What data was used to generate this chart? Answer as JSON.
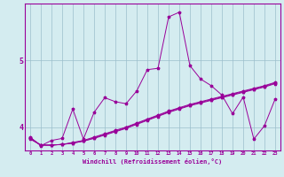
{
  "xlabel": "Windchill (Refroidissement éolien,°C)",
  "bg_color": "#d4ecf0",
  "line_color": "#990099",
  "grid_color": "#9bbfcc",
  "x_ticks": [
    0,
    1,
    2,
    3,
    4,
    5,
    6,
    7,
    8,
    9,
    10,
    11,
    12,
    13,
    14,
    15,
    16,
    17,
    18,
    19,
    20,
    21,
    22,
    23
  ],
  "y_ticks": [
    4,
    5
  ],
  "ylim": [
    3.65,
    5.85
  ],
  "xlim": [
    -0.5,
    23.5
  ],
  "series1_x": [
    0,
    1,
    2,
    3,
    4,
    5,
    6,
    7,
    8,
    9,
    10,
    11,
    12,
    13,
    14,
    15,
    16,
    17,
    18,
    19,
    20,
    21,
    22,
    23
  ],
  "series1_y": [
    3.85,
    3.72,
    3.8,
    3.83,
    4.27,
    3.82,
    4.22,
    4.44,
    4.38,
    4.35,
    4.54,
    4.86,
    4.88,
    5.65,
    5.72,
    4.92,
    4.72,
    4.62,
    4.48,
    4.2,
    4.45,
    3.82,
    4.02,
    4.42
  ],
  "series2_x": [
    0,
    1,
    2,
    3,
    4,
    5,
    6,
    7,
    8,
    9,
    10,
    11,
    12,
    13,
    14,
    15,
    16,
    17,
    18,
    19,
    20,
    21,
    22,
    23
  ],
  "series2_y": [
    3.82,
    3.73,
    3.73,
    3.74,
    3.76,
    3.79,
    3.83,
    3.88,
    3.93,
    3.98,
    4.04,
    4.1,
    4.16,
    4.22,
    4.27,
    4.32,
    4.36,
    4.4,
    4.44,
    4.48,
    4.52,
    4.56,
    4.6,
    4.65
  ],
  "series3_x": [
    0,
    1,
    2,
    3,
    4,
    5,
    6,
    7,
    8,
    9,
    10,
    11,
    12,
    13,
    14,
    15,
    16,
    17,
    18,
    19,
    20,
    21,
    22,
    23
  ],
  "series3_y": [
    3.83,
    3.73,
    3.73,
    3.74,
    3.76,
    3.79,
    3.84,
    3.89,
    3.94,
    3.99,
    4.05,
    4.11,
    4.17,
    4.23,
    4.28,
    4.33,
    4.37,
    4.41,
    4.45,
    4.49,
    4.53,
    4.57,
    4.61,
    4.66
  ],
  "series4_x": [
    0,
    1,
    2,
    3,
    4,
    5,
    6,
    7,
    8,
    9,
    10,
    11,
    12,
    13,
    14,
    15,
    16,
    17,
    18,
    19,
    20,
    21,
    22,
    23
  ],
  "series4_y": [
    3.84,
    3.73,
    3.73,
    3.74,
    3.77,
    3.8,
    3.85,
    3.9,
    3.95,
    4.0,
    4.06,
    4.12,
    4.18,
    4.24,
    4.29,
    4.34,
    4.38,
    4.42,
    4.46,
    4.5,
    4.54,
    4.58,
    4.62,
    4.67
  ]
}
